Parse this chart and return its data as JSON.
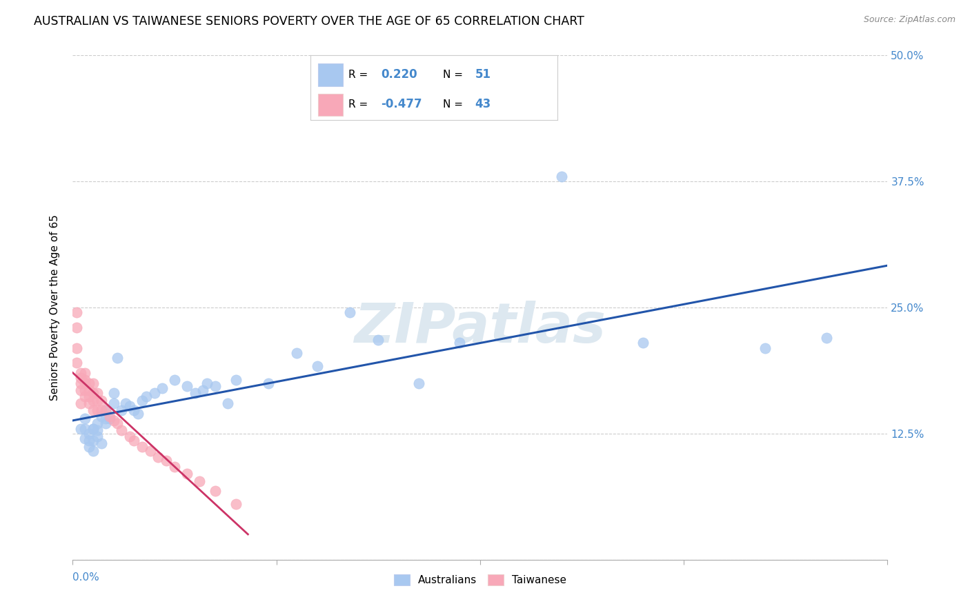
{
  "title": "AUSTRALIAN VS TAIWANESE SENIORS POVERTY OVER THE AGE OF 65 CORRELATION CHART",
  "source": "Source: ZipAtlas.com",
  "ylabel": "Seniors Poverty Over the Age of 65",
  "xlim": [
    0.0,
    0.2
  ],
  "ylim": [
    0.0,
    0.5
  ],
  "xticks": [
    0.0,
    0.05,
    0.1,
    0.15,
    0.2
  ],
  "yticks": [
    0.0,
    0.125,
    0.25,
    0.375,
    0.5
  ],
  "ytick_labels": [
    "",
    "12.5%",
    "25.0%",
    "37.5%",
    "50.0%"
  ],
  "aus_color": "#a8c8f0",
  "tai_color": "#f8a8b8",
  "aus_line_color": "#2255aa",
  "tai_line_color": "#cc3366",
  "watermark": "ZIPatlas",
  "watermark_color": "#dde8f0",
  "background_color": "#ffffff",
  "grid_color": "#cccccc",
  "right_tick_color": "#4488cc",
  "legend_text_color": "#4488cc",
  "aus_x": [
    0.002,
    0.003,
    0.003,
    0.003,
    0.004,
    0.004,
    0.004,
    0.005,
    0.005,
    0.005,
    0.005,
    0.006,
    0.006,
    0.006,
    0.007,
    0.007,
    0.008,
    0.008,
    0.008,
    0.009,
    0.01,
    0.01,
    0.011,
    0.012,
    0.013,
    0.014,
    0.015,
    0.016,
    0.017,
    0.018,
    0.02,
    0.022,
    0.025,
    0.028,
    0.03,
    0.032,
    0.033,
    0.035,
    0.038,
    0.04,
    0.048,
    0.055,
    0.06,
    0.068,
    0.075,
    0.085,
    0.095,
    0.12,
    0.14,
    0.17,
    0.185
  ],
  "aus_y": [
    0.13,
    0.13,
    0.14,
    0.12,
    0.125,
    0.118,
    0.112,
    0.13,
    0.118,
    0.108,
    0.13,
    0.135,
    0.128,
    0.122,
    0.142,
    0.115,
    0.148,
    0.135,
    0.14,
    0.14,
    0.165,
    0.155,
    0.2,
    0.148,
    0.155,
    0.152,
    0.148,
    0.145,
    0.158,
    0.162,
    0.165,
    0.17,
    0.178,
    0.172,
    0.165,
    0.168,
    0.175,
    0.172,
    0.155,
    0.178,
    0.175,
    0.205,
    0.192,
    0.245,
    0.218,
    0.175,
    0.215,
    0.38,
    0.215,
    0.21,
    0.22
  ],
  "tai_x": [
    0.001,
    0.001,
    0.001,
    0.001,
    0.002,
    0.002,
    0.002,
    0.002,
    0.002,
    0.003,
    0.003,
    0.003,
    0.003,
    0.003,
    0.004,
    0.004,
    0.004,
    0.004,
    0.005,
    0.005,
    0.005,
    0.005,
    0.006,
    0.006,
    0.006,
    0.007,
    0.007,
    0.008,
    0.009,
    0.01,
    0.011,
    0.012,
    0.014,
    0.015,
    0.017,
    0.019,
    0.021,
    0.023,
    0.025,
    0.028,
    0.031,
    0.035,
    0.04
  ],
  "tai_y": [
    0.245,
    0.23,
    0.21,
    0.195,
    0.185,
    0.18,
    0.175,
    0.168,
    0.155,
    0.185,
    0.178,
    0.175,
    0.168,
    0.162,
    0.175,
    0.168,
    0.162,
    0.155,
    0.175,
    0.165,
    0.158,
    0.148,
    0.165,
    0.158,
    0.148,
    0.158,
    0.148,
    0.148,
    0.142,
    0.138,
    0.135,
    0.128,
    0.122,
    0.118,
    0.112,
    0.108,
    0.102,
    0.098,
    0.092,
    0.085,
    0.078,
    0.068,
    0.055
  ]
}
